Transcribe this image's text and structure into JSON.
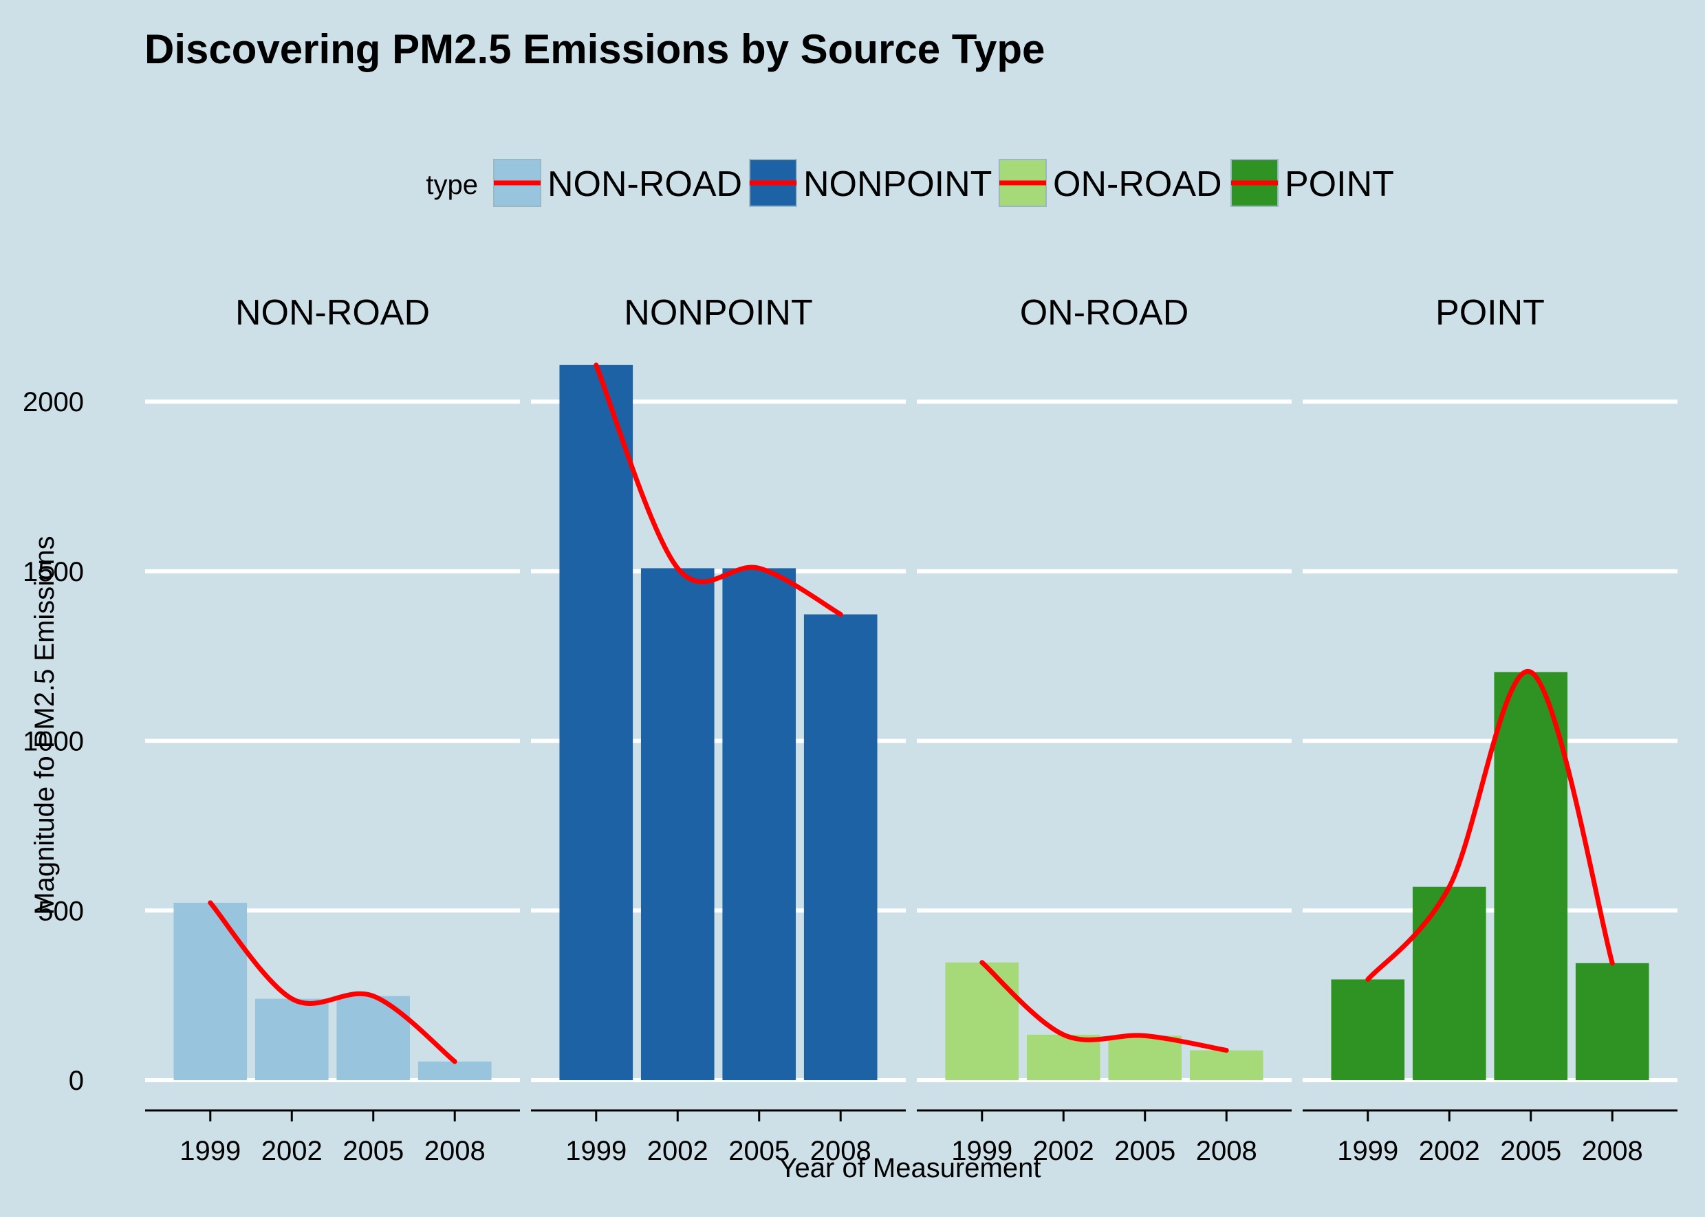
{
  "chart_data": {
    "type": "bar",
    "title": "Discovering PM2.5 Emissions by Source Type",
    "xlabel": "Year of Measurement",
    "ylabel": "Magnitude fo PM2.5 Emissions",
    "categories": [
      "1999",
      "2002",
      "2005",
      "2008"
    ],
    "ylim": [
      -75,
      2130
    ],
    "yticks": [
      0,
      500,
      1000,
      1500,
      2000
    ],
    "grid": "horizontal",
    "legend_position": "top",
    "legend_title": "type",
    "smooth_line_color": "#ff0000",
    "series": [
      {
        "name": "NON-ROAD",
        "color": "#98c4de",
        "values": [
          523,
          240,
          248,
          55
        ]
      },
      {
        "name": "NONPOINT",
        "color": "#1d62a4",
        "values": [
          2108,
          1509,
          1509,
          1373
        ]
      },
      {
        "name": "ON-ROAD",
        "color": "#a6da78",
        "values": [
          347,
          134,
          131,
          88
        ]
      },
      {
        "name": "POINT",
        "color": "#2e9322",
        "values": [
          297,
          570,
          1203,
          345
        ]
      }
    ]
  }
}
